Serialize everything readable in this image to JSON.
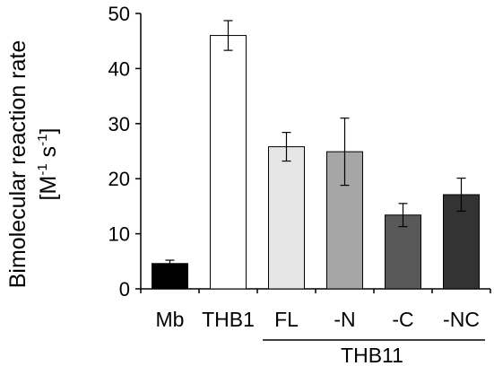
{
  "chart_data": {
    "type": "bar",
    "categories": [
      "Mb",
      "THB1",
      "FL",
      "-N",
      "-C",
      "-NC"
    ],
    "values": [
      4.6,
      46.0,
      25.8,
      24.9,
      13.4,
      17.1
    ],
    "errors": [
      0.6,
      2.7,
      2.6,
      6.1,
      2.1,
      3.0
    ],
    "bar_colors": [
      "#000000",
      "#ffffff",
      "#e6e6e6",
      "#a6a6a6",
      "#595959",
      "#333333"
    ],
    "ylim": [
      0,
      50
    ],
    "yticks": [
      "0",
      "10",
      "20",
      "30",
      "40",
      "50"
    ],
    "ylabel_line1": "Bimolecular reaction rate",
    "ylabel_line2_unit": "[M",
    "ylabel_line2_exp1": "-1",
    "ylabel_line2_mid": " s",
    "ylabel_line2_exp2": "-1",
    "ylabel_line2_end": "]",
    "group_label": "THB11",
    "grid": false
  }
}
